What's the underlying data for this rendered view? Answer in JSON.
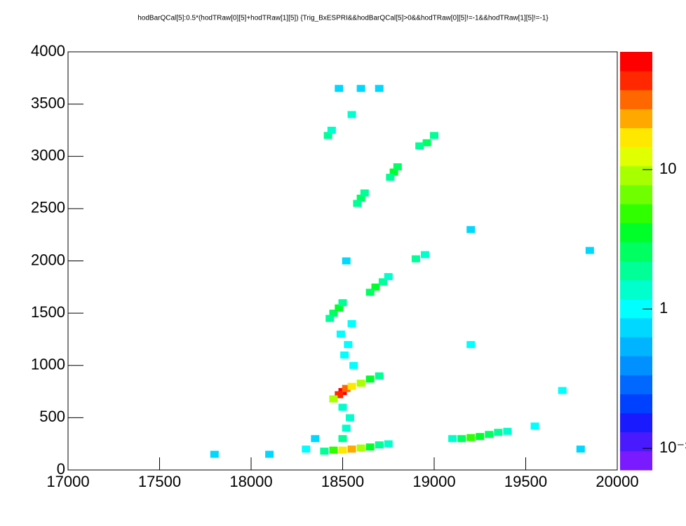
{
  "chart_data": {
    "type": "hist2d",
    "title": "hodBarQCal[5]:0.5*(hodTRaw[0][5]+hodTRaw[1][5]) {Trig_BxESPRI&&hodBarQCal[5]>0&&hodTRaw[0][5]!=-1&&hodTRaw[1][5]!=-1}",
    "x": [
      18500,
      18480,
      18520,
      18550,
      18600,
      18650,
      18450,
      18700,
      18550,
      18500,
      18600,
      18650,
      18700,
      18750,
      18450,
      18400,
      19200,
      19250,
      19150,
      19300,
      19350,
      19400,
      19100,
      18450,
      18480,
      18500,
      18430,
      18680,
      18650,
      18720,
      18750,
      18900,
      18950,
      18600,
      18620,
      18580,
      18780,
      18800,
      18760,
      18960,
      19000,
      18920,
      18420,
      18440,
      18550,
      18500,
      18520,
      18540,
      18500,
      18560,
      18510,
      18530,
      18490,
      18550,
      18520,
      18480,
      19700,
      19200,
      19200,
      19550,
      18100,
      18300,
      17800,
      19800,
      19850,
      18600,
      18350,
      18700
    ],
    "y": [
      750,
      720,
      780,
      800,
      830,
      870,
      680,
      900,
      200,
      190,
      210,
      220,
      240,
      250,
      190,
      180,
      310,
      320,
      300,
      340,
      360,
      370,
      300,
      1500,
      1550,
      1600,
      1450,
      1750,
      1700,
      1800,
      1850,
      2020,
      2060,
      2600,
      2650,
      2550,
      2850,
      2900,
      2800,
      3130,
      3200,
      3100,
      3200,
      3250,
      3400,
      300,
      400,
      500,
      600,
      1000,
      1100,
      1200,
      1300,
      1400,
      2000,
      3650,
      760,
      1200,
      2300,
      420,
      150,
      200,
      150,
      200,
      2100,
      3650,
      300,
      3650
    ],
    "values": [
      60,
      40,
      30,
      15,
      8,
      4,
      8,
      2,
      20,
      15,
      10,
      4,
      2,
      1.5,
      5,
      2,
      5,
      4,
      3,
      3,
      2,
      1.5,
      1.5,
      3,
      4,
      2,
      2,
      4,
      3,
      2,
      1.5,
      2,
      1.5,
      3,
      2,
      2,
      4,
      3,
      2,
      3,
      2,
      2,
      2,
      1.5,
      1.5,
      2,
      1.5,
      1.5,
      1.5,
      1,
      1,
      1,
      1,
      1,
      0.8,
      0.8,
      1,
      1,
      0.8,
      1,
      0.8,
      1,
      0.8,
      0.8,
      0.7,
      0.8,
      0.8,
      0.8
    ],
    "xlim": [
      17000,
      20000
    ],
    "ylim": [
      0,
      4000
    ],
    "xticks": [
      17000,
      17500,
      18000,
      18500,
      19000,
      19500,
      20000
    ],
    "yticks": [
      0,
      500,
      1000,
      1500,
      2000,
      2500,
      3000,
      3500,
      4000
    ],
    "zlim": [
      0.07,
      70
    ],
    "zscale": "log",
    "zticks": [
      {
        "value": 0.1,
        "label": "10⁻¹"
      },
      1,
      10
    ],
    "palette": [
      "#7a1aff",
      "#4a1aff",
      "#1a1aff",
      "#0040ff",
      "#0068ff",
      "#0090ff",
      "#00b4ff",
      "#00d8ff",
      "#00ffff",
      "#00ffcc",
      "#00ff96",
      "#00ff60",
      "#00ff28",
      "#30ff00",
      "#70ff00",
      "#a8ff00",
      "#e0ff00",
      "#ffe800",
      "#ffa800",
      "#ff6800",
      "#ff2800",
      "#ff0000"
    ]
  }
}
